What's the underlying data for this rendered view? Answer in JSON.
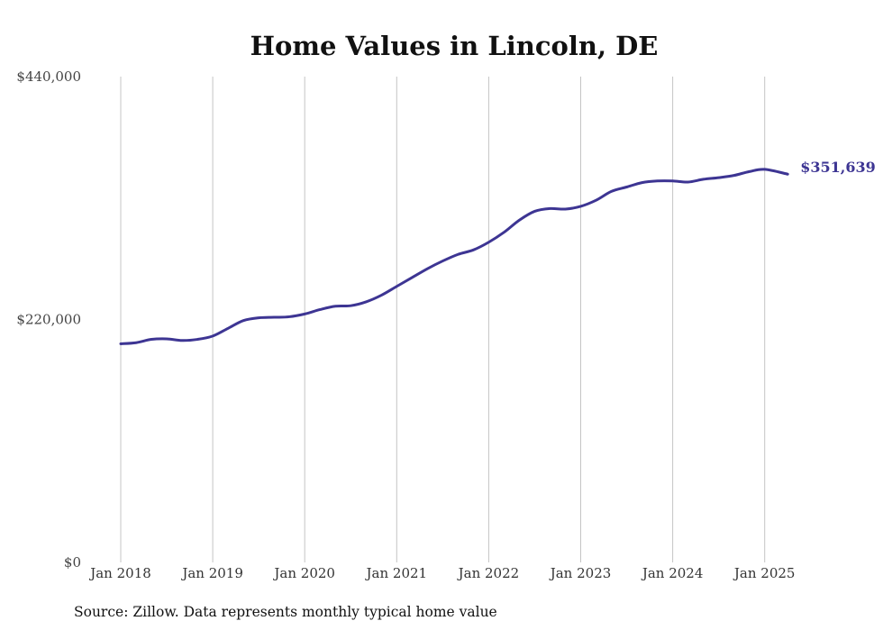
{
  "chart_data": {
    "type": "line",
    "title": "Home Values in Lincoln, DE",
    "xlabel": "",
    "ylabel": "",
    "ylim": [
      0,
      440000
    ],
    "xlim": [
      "2018-01",
      "2025-04"
    ],
    "y_ticks": [
      {
        "value": 0,
        "label": "$0"
      },
      {
        "value": 220000,
        "label": "$220,000"
      },
      {
        "value": 440000,
        "label": "$440,000"
      }
    ],
    "x_ticks": [
      {
        "date": "2018-01",
        "label": "Jan 2018"
      },
      {
        "date": "2019-01",
        "label": "Jan 2019"
      },
      {
        "date": "2020-01",
        "label": "Jan 2020"
      },
      {
        "date": "2021-01",
        "label": "Jan 2021"
      },
      {
        "date": "2022-01",
        "label": "Jan 2022"
      },
      {
        "date": "2023-01",
        "label": "Jan 2023"
      },
      {
        "date": "2024-01",
        "label": "Jan 2024"
      },
      {
        "date": "2025-01",
        "label": "Jan 2025"
      }
    ],
    "grid": "vertical",
    "series": [
      {
        "color": "#3d3593",
        "end_label": "$351,639",
        "points": [
          [
            "2018-01",
            198000
          ],
          [
            "2018-03",
            199000
          ],
          [
            "2018-05",
            202000
          ],
          [
            "2018-07",
            202500
          ],
          [
            "2018-09",
            201000
          ],
          [
            "2018-11",
            202000
          ],
          [
            "2019-01",
            205000
          ],
          [
            "2019-03",
            212000
          ],
          [
            "2019-05",
            219000
          ],
          [
            "2019-07",
            221500
          ],
          [
            "2019-09",
            222000
          ],
          [
            "2019-11",
            222500
          ],
          [
            "2020-01",
            225000
          ],
          [
            "2020-03",
            229000
          ],
          [
            "2020-05",
            232000
          ],
          [
            "2020-07",
            232500
          ],
          [
            "2020-09",
            236000
          ],
          [
            "2020-11",
            242000
          ],
          [
            "2021-01",
            250000
          ],
          [
            "2021-03",
            258000
          ],
          [
            "2021-05",
            266000
          ],
          [
            "2021-07",
            273000
          ],
          [
            "2021-09",
            279000
          ],
          [
            "2021-11",
            283000
          ],
          [
            "2022-01",
            290000
          ],
          [
            "2022-03",
            299000
          ],
          [
            "2022-05",
            310000
          ],
          [
            "2022-07",
            318000
          ],
          [
            "2022-09",
            320500
          ],
          [
            "2022-11",
            320000
          ],
          [
            "2023-01",
            322500
          ],
          [
            "2023-03",
            328000
          ],
          [
            "2023-05",
            336000
          ],
          [
            "2023-07",
            340000
          ],
          [
            "2023-09",
            344000
          ],
          [
            "2023-11",
            345500
          ],
          [
            "2024-01",
            345500
          ],
          [
            "2024-03",
            344500
          ],
          [
            "2024-05",
            347000
          ],
          [
            "2024-07",
            348500
          ],
          [
            "2024-09",
            350500
          ],
          [
            "2024-11",
            354000
          ],
          [
            "2025-01",
            356000
          ],
          [
            "2025-04",
            351639
          ]
        ]
      }
    ],
    "source": "Source: Zillow. Data represents monthly typical home value"
  }
}
